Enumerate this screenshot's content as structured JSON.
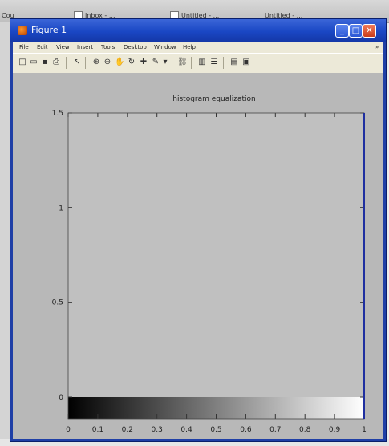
{
  "background": {
    "taskbar_items": [
      "Cou",
      "Inbox - ...",
      "Untitled - ...",
      "Untitled - ..."
    ]
  },
  "window": {
    "title": "Figure 1",
    "min_glyph": "_",
    "max_glyph": "□",
    "close_glyph": "✕"
  },
  "menubar": {
    "items": [
      "File",
      "Edit",
      "View",
      "Insert",
      "Tools",
      "Desktop",
      "Window",
      "Help"
    ],
    "overflow": "»"
  },
  "toolbar": {
    "icons": [
      "new-figure-icon",
      "open-file-icon",
      "save-icon",
      "print-icon",
      "arrow-icon",
      "zoom-in-icon",
      "zoom-out-icon",
      "pan-icon",
      "rotate-icon",
      "data-cursor-icon",
      "brush-icon",
      "link-icon",
      "colorbar-icon",
      "legend-icon",
      "hide-tools-icon",
      "show-tools-icon"
    ]
  },
  "chart_data": {
    "type": "bar",
    "title": "histogram equalization",
    "xlim": [
      0,
      1
    ],
    "ylim": [
      0,
      1.5
    ],
    "x_ticks": [
      0,
      0.1,
      0.2,
      0.3,
      0.4,
      0.5,
      0.6,
      0.7,
      0.8,
      0.9,
      1
    ],
    "x_tick_labels": [
      "0",
      "0.1",
      "0.2",
      "0.3",
      "0.4",
      "0.5",
      "0.6",
      "0.7",
      "0.8",
      "0.9",
      "1"
    ],
    "y_ticks": [
      0,
      0.5,
      1,
      1.5
    ],
    "y_tick_labels": [
      "0",
      "0.5",
      "1",
      "1.5"
    ],
    "colormap": "gray",
    "axes_background": "#c0c0c0",
    "figure_background": "#b8b8b8",
    "grid": false
  }
}
